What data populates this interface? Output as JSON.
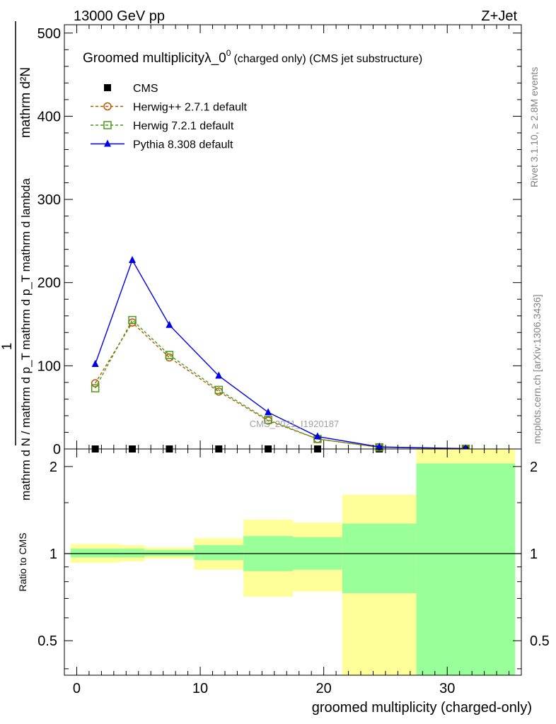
{
  "header": {
    "left": "13000 GeV pp",
    "right": "Z+Jet"
  },
  "side_labels": {
    "rivet": "Rivet 3.1.10, ≥ 2.8M events",
    "mcplots": "mcplots.cern.ch [arXiv:1306.3436]"
  },
  "watermark": "CMS_2021_I1920187",
  "colors": {
    "cms": "#000000",
    "herwigpp": "#b35900",
    "herwig7": "#4c9a1a",
    "pythia": "#0000e6",
    "band_inner": "#99ff99",
    "band_outer": "#ffff99"
  },
  "chart_data": [
    {
      "type": "line",
      "title": "Groomed multiplicityλ_0",
      "title_sup": "0",
      "title_suffix": "(charged only) (CMS jet substructure)",
      "ylabel_top": "1",
      "ylabel_num": "mathrm d²N",
      "ylabel_den": "mathrm d N / mathrm d p_T mathrm d p_T mathrm d lambda",
      "ylim": [
        0,
        510
      ],
      "yticks": [
        0,
        100,
        200,
        300,
        400,
        500
      ],
      "xlim": [
        -1,
        36
      ],
      "x": [
        1.5,
        4.5,
        7.5,
        11.5,
        15.5,
        19.5,
        24.5,
        31.5
      ],
      "series": [
        {
          "name": "CMS",
          "key": "cms",
          "marker": "square-filled",
          "line": "none",
          "values": [
            0,
            0,
            0,
            0,
            0,
            0,
            0,
            0
          ]
        },
        {
          "name": "Herwig++ 2.7.1 default",
          "key": "herwigpp",
          "marker": "circle-open",
          "line": "dashed",
          "values": [
            79,
            152,
            110,
            69,
            34,
            12,
            2,
            0.3
          ]
        },
        {
          "name": "Herwig 7.2.1 default",
          "key": "herwig7",
          "marker": "square-open",
          "line": "dashed",
          "values": [
            73,
            155,
            113,
            71,
            35,
            12,
            2,
            0.3
          ]
        },
        {
          "name": "Pythia 8.308 default",
          "key": "pythia",
          "marker": "triangle-filled",
          "line": "solid",
          "values": [
            102,
            227,
            149,
            88,
            44,
            15,
            2.5,
            0.4
          ]
        }
      ]
    },
    {
      "type": "area",
      "ylabel": "Ratio to CMS",
      "xlabel": "groomed multiplicity (charged-only)",
      "yscale": "log",
      "ylim": [
        0.38,
        2.3
      ],
      "yticks": [
        0.5,
        1,
        2
      ],
      "xticks": [
        0,
        10,
        20,
        30
      ],
      "reference": 1,
      "bins": [
        {
          "lo": -0.5,
          "hi": 3.5,
          "inner": [
            0.97,
            1.04
          ],
          "outer": [
            0.93,
            1.08
          ]
        },
        {
          "lo": 3.5,
          "hi": 5.5,
          "inner": [
            0.97,
            1.04
          ],
          "outer": [
            0.94,
            1.07
          ]
        },
        {
          "lo": 5.5,
          "hi": 9.5,
          "inner": [
            0.98,
            1.03
          ],
          "outer": [
            0.96,
            1.05
          ]
        },
        {
          "lo": 9.5,
          "hi": 13.5,
          "inner": [
            0.95,
            1.07
          ],
          "outer": [
            0.88,
            1.13
          ]
        },
        {
          "lo": 13.5,
          "hi": 17.5,
          "inner": [
            0.87,
            1.15
          ],
          "outer": [
            0.71,
            1.31
          ]
        },
        {
          "lo": 17.5,
          "hi": 21.5,
          "inner": [
            0.88,
            1.14
          ],
          "outer": [
            0.74,
            1.28
          ]
        },
        {
          "lo": 21.5,
          "hi": 27.5,
          "inner": [
            0.73,
            1.27
          ],
          "outer": [
            0.38,
            1.6
          ]
        },
        {
          "lo": 27.5,
          "hi": 35.5,
          "inner": [
            0.38,
            2.05
          ],
          "outer": [
            0.38,
            2.3
          ]
        }
      ]
    }
  ]
}
